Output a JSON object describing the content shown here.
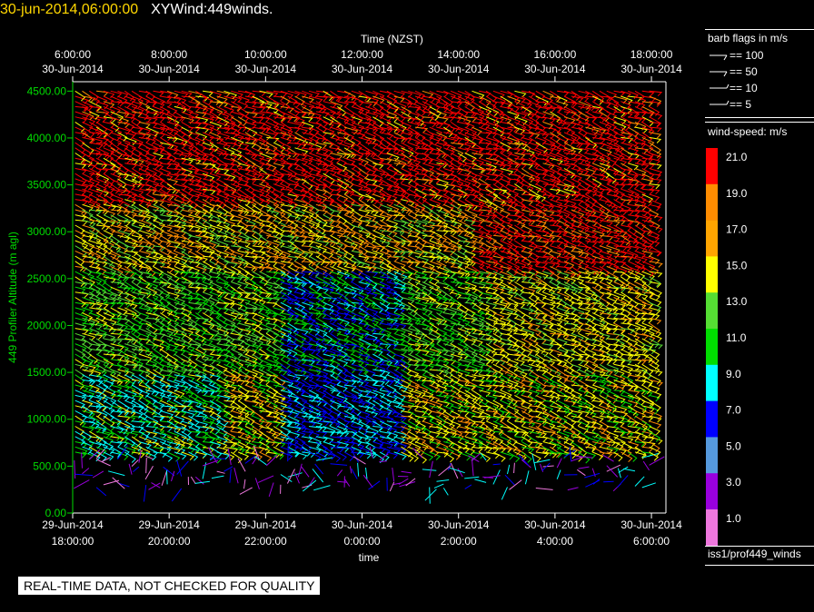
{
  "header": {
    "timestamp": "30-jun-2014,06:00:00",
    "dataset": "XYWind:449winds."
  },
  "chart_data": {
    "type": "wind-barb-profile",
    "top_axis": {
      "title": "Time (NZST)",
      "ticks": [
        {
          "time": "6:00:00",
          "date": "30-Jun-2014"
        },
        {
          "time": "8:00:00",
          "date": "30-Jun-2014"
        },
        {
          "time": "10:00:00",
          "date": "30-Jun-2014"
        },
        {
          "time": "12:00:00",
          "date": "30-Jun-2014"
        },
        {
          "time": "14:00:00",
          "date": "30-Jun-2014"
        },
        {
          "time": "16:00:00",
          "date": "30-Jun-2014"
        },
        {
          "time": "18:00:00",
          "date": "30-Jun-2014"
        }
      ]
    },
    "bottom_axis": {
      "title": "time",
      "ticks": [
        {
          "date": "29-Jun-2014",
          "time": "18:00:00"
        },
        {
          "date": "29-Jun-2014",
          "time": "20:00:00"
        },
        {
          "date": "29-Jun-2014",
          "time": "22:00:00"
        },
        {
          "date": "30-Jun-2014",
          "time": "0:00:00"
        },
        {
          "date": "30-Jun-2014",
          "time": "2:00:00"
        },
        {
          "date": "30-Jun-2014",
          "time": "4:00:00"
        },
        {
          "date": "30-Jun-2014",
          "time": "6:00:00"
        }
      ]
    },
    "y_axis": {
      "title": "449 Profiler Altitude (m agl)",
      "ticks": [
        "0.00",
        "500.00",
        "1000.00",
        "1500.00",
        "2000.00",
        "2500.00",
        "3000.00",
        "3500.00",
        "4000.00",
        "4500.00"
      ],
      "range": [
        0,
        4600
      ]
    },
    "x_range_hours": [
      18,
      30.3
    ],
    "lower_gate_top_m": 650,
    "upper_gate_top_m": 4550
  },
  "barb_legend": {
    "title": "barb flags in m/s",
    "entries": [
      "== 100",
      "== 50",
      "== 10",
      "== 5"
    ]
  },
  "speed_scale": {
    "title": "wind-speed: m/s",
    "entries": [
      {
        "label": "21.0",
        "color": "#ff0000"
      },
      {
        "label": "19.0",
        "color": "#ff8c00"
      },
      {
        "label": "17.0",
        "color": "#ffa500"
      },
      {
        "label": "15.0",
        "color": "#ffff00"
      },
      {
        "label": "13.0",
        "color": "#55dd33"
      },
      {
        "label": "11.0",
        "color": "#00dd00"
      },
      {
        "label": "9.0",
        "color": "#00ffff"
      },
      {
        "label": "7.0",
        "color": "#0000ff"
      },
      {
        "label": "5.0",
        "color": "#5599dd"
      },
      {
        "label": "3.0",
        "color": "#9900dd"
      },
      {
        "label": "1.0",
        "color": "#ee77dd"
      }
    ]
  },
  "footer": {
    "source": "iss1/prof449_winds",
    "warning": "REAL-TIME DATA, NOT CHECKED FOR QUALITY"
  }
}
